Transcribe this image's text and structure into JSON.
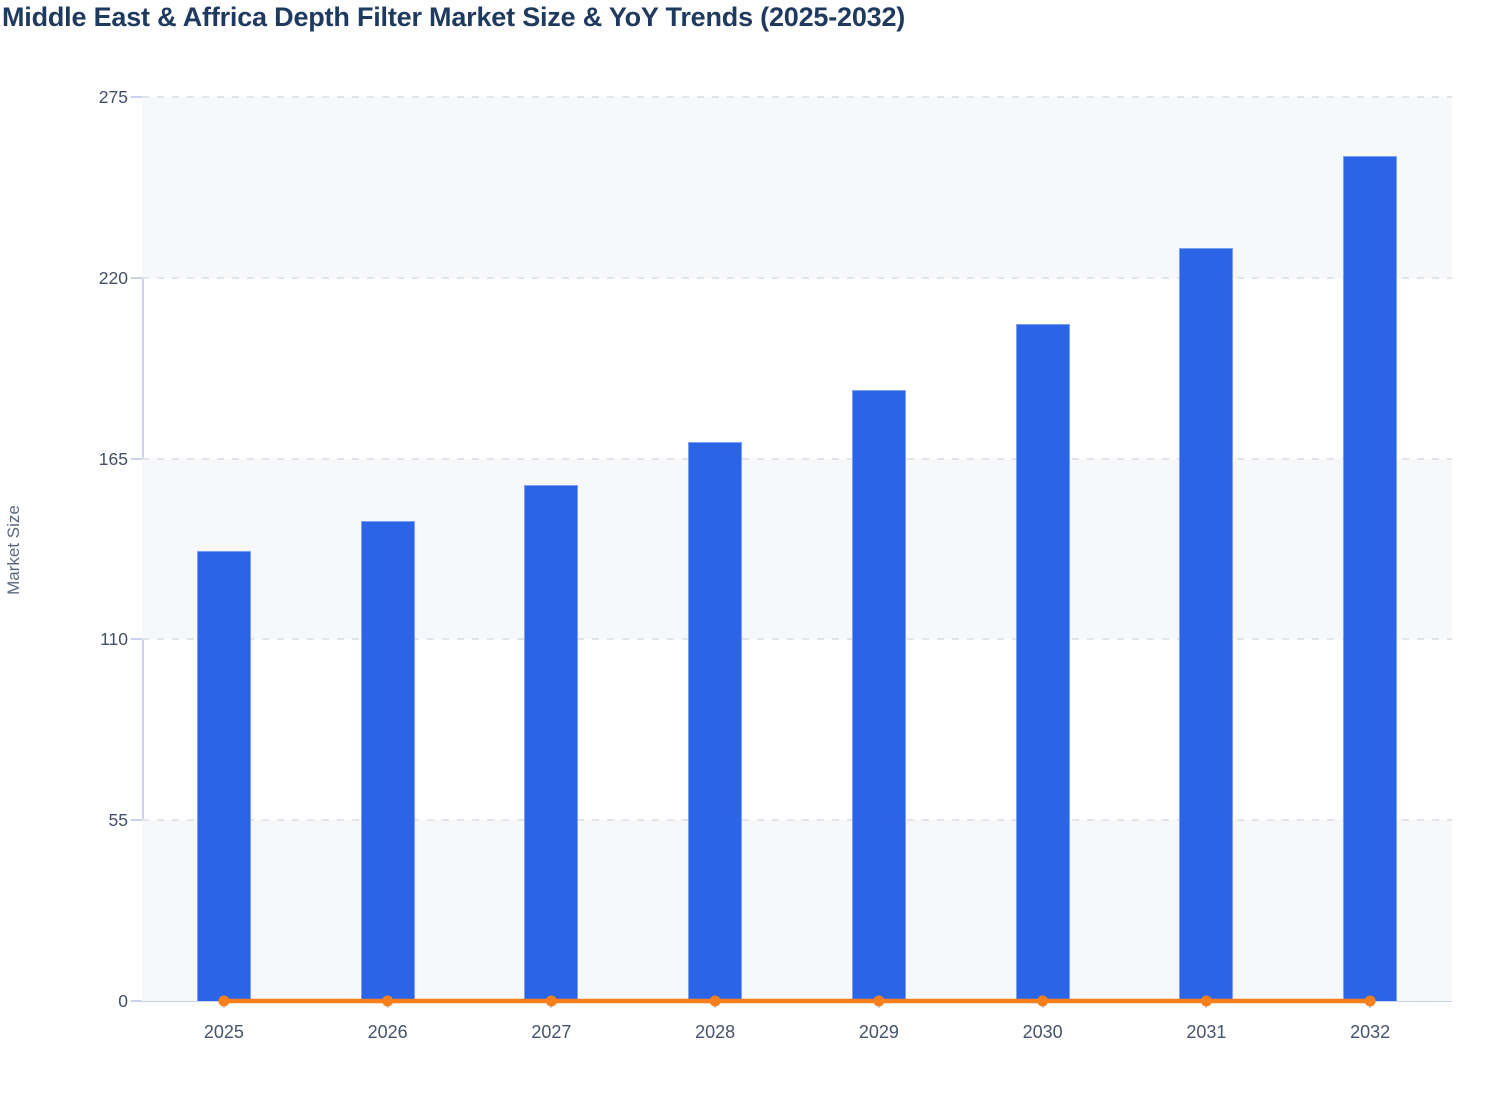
{
  "title": "Middle East & Affrica Depth Filter Market Size & YoY Trends (2025-2032)",
  "colors": {
    "title_text": "#1f3a5f",
    "bar_fill": "#2c64e7",
    "bar_border": "#7d9ff2",
    "yoy_line": "#f8801c",
    "axis_line": "#c9d3ec",
    "gridline": "#e2e4e9",
    "band_fill": "#f6f8fa",
    "tick_label_text": "#44546d",
    "axis_title_text": "#5b6880"
  },
  "chart_data": {
    "type": "bar",
    "title": "Middle East & Affrica Depth Filter Market Size & YoY Trends (2025-2032)",
    "categories": [
      "2025",
      "2026",
      "2027",
      "2028",
      "2029",
      "2030",
      "2031",
      "2032"
    ],
    "series": [
      {
        "name": "Market Size",
        "type": "bar",
        "values": [
          137,
          146,
          157,
          170,
          186,
          206,
          229,
          257
        ]
      },
      {
        "name": "YoY",
        "type": "line",
        "values": [
          0,
          0,
          0,
          0,
          0,
          0,
          0,
          0
        ]
      }
    ],
    "xlabel": "",
    "ylabel": "Market Size",
    "yticks": [
      0,
      55,
      110,
      165,
      220,
      275
    ],
    "ylim": [
      0,
      275
    ],
    "grid": "horizontal-dashed",
    "bands": "alternating-horizontal",
    "legend": "none"
  }
}
